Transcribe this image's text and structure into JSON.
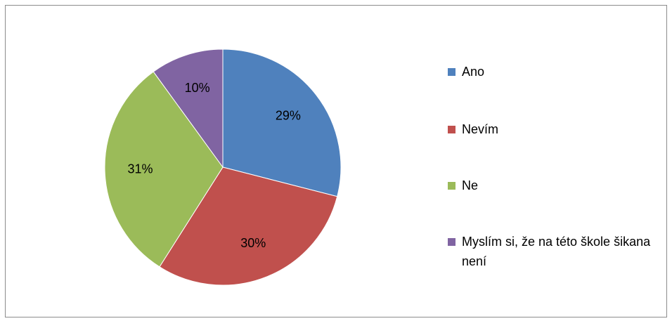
{
  "chart_data": {
    "type": "pie",
    "categories": [
      "Ano",
      "Nevím",
      "Ne",
      "Myslím si, že na této škole šikana není"
    ],
    "values": [
      29,
      30,
      31,
      10
    ],
    "value_labels": [
      "29%",
      "30%",
      "31%",
      "10%"
    ],
    "colors": [
      "#4f81bd",
      "#c0504d",
      "#9bbb59",
      "#8064a2"
    ],
    "legend": "right"
  }
}
